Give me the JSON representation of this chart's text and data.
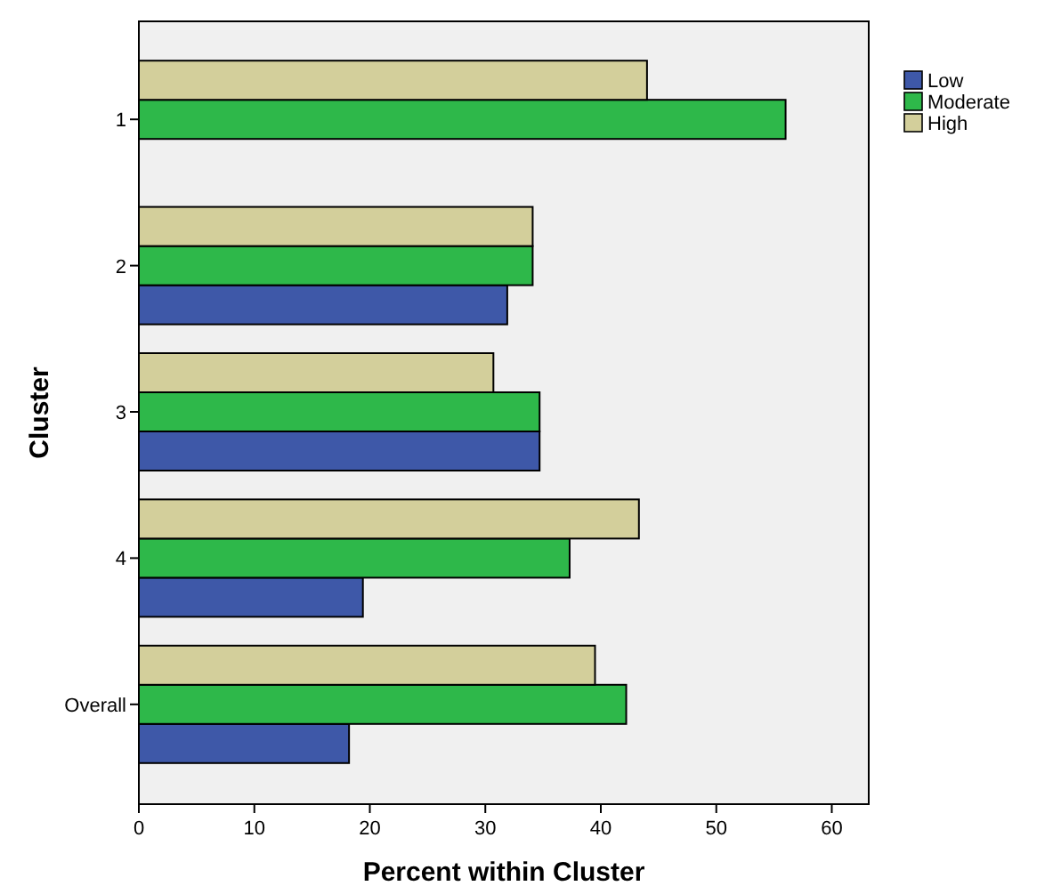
{
  "chart_data": {
    "type": "bar",
    "orientation": "horizontal",
    "xlabel": "Percent within Cluster",
    "ylabel": "Cluster",
    "categories": [
      "1",
      "2",
      "3",
      "4",
      "Overall"
    ],
    "series": [
      {
        "name": "Low",
        "color": "#3e58a8",
        "values": [
          0,
          31.9,
          34.7,
          19.4,
          18.2
        ]
      },
      {
        "name": "Moderate",
        "color": "#2eb84a",
        "values": [
          56.0,
          34.1,
          34.7,
          37.3,
          42.2
        ]
      },
      {
        "name": "High",
        "color": "#d3cf9b",
        "values": [
          44.0,
          34.1,
          30.7,
          43.3,
          39.5
        ]
      }
    ],
    "xlim": [
      0,
      63.2
    ],
    "xticks": [
      0,
      10,
      20,
      30,
      40,
      50,
      60
    ],
    "grid": false,
    "legend": "top right"
  }
}
